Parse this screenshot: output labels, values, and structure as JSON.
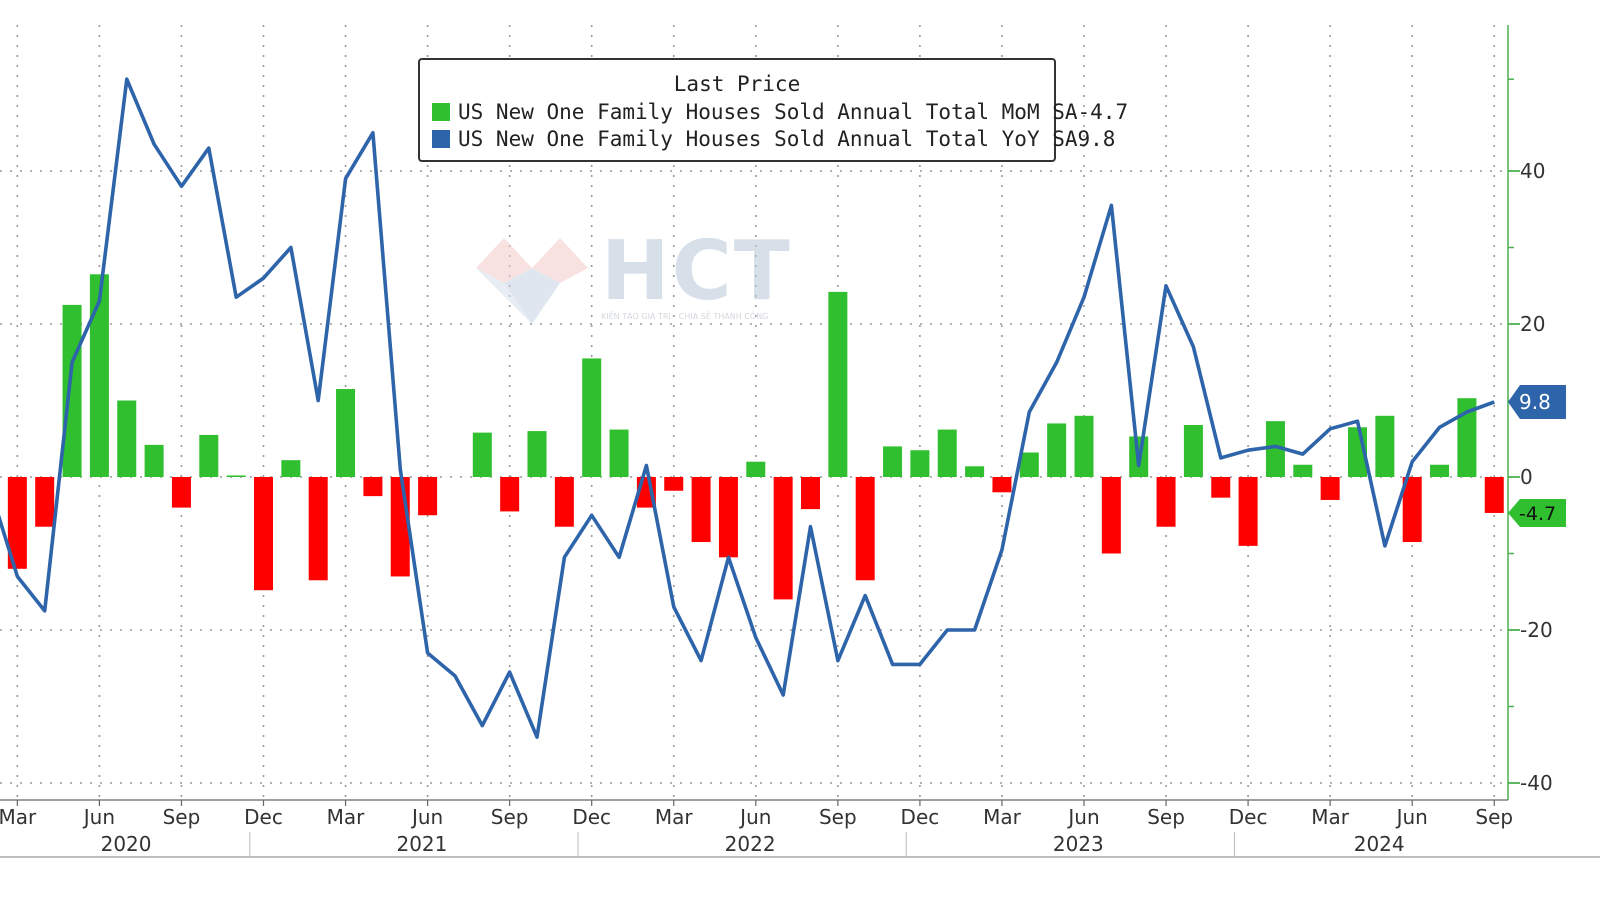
{
  "legend": {
    "title": "Last Price",
    "items": [
      {
        "name": "US New One Family Houses Sold Annual Total MoM SA",
        "value": "-4.7",
        "color": "#2fbf2f"
      },
      {
        "name": "US New One Family Houses Sold Annual Total YoY SA",
        "value": "9.8",
        "color": "#2e64aa"
      }
    ]
  },
  "watermark": {
    "text": "HCT",
    "tagline": "KIẾN TẠO GIÁ TRỊ - CHIA SẺ THÀNH CÔNG"
  },
  "chart_data": {
    "type": "bar+line",
    "months": [
      "2020-02",
      "2020-03",
      "2020-04",
      "2020-05",
      "2020-06",
      "2020-07",
      "2020-08",
      "2020-09",
      "2020-10",
      "2020-11",
      "2020-12",
      "2021-01",
      "2021-02",
      "2021-03",
      "2021-04",
      "2021-05",
      "2021-06",
      "2021-07",
      "2021-08",
      "2021-09",
      "2021-10",
      "2021-11",
      "2021-12",
      "2022-01",
      "2022-02",
      "2022-03",
      "2022-04",
      "2022-05",
      "2022-06",
      "2022-07",
      "2022-08",
      "2022-09",
      "2022-10",
      "2022-11",
      "2022-12",
      "2023-01",
      "2023-02",
      "2023-03",
      "2023-04",
      "2023-05",
      "2023-06",
      "2023-07",
      "2023-08",
      "2023-09",
      "2023-10",
      "2023-11",
      "2023-12",
      "2024-01",
      "2024-02",
      "2024-03",
      "2024-04",
      "2024-05",
      "2024-06",
      "2024-07",
      "2024-08",
      "2024-09"
    ],
    "series": [
      {
        "name": "US New One Family Houses Sold Annual Total MoM SA",
        "type": "bar",
        "color_pos": "#2fbf2f",
        "color_neg": "#ff0000",
        "values": [
          null,
          -12,
          -6.5,
          22.5,
          26.5,
          10,
          4.2,
          -4,
          5.5,
          0.2,
          -14.8,
          2.2,
          -13.5,
          11.5,
          -2.5,
          -13,
          -5,
          null,
          5.8,
          -4.5,
          6,
          -6.5,
          15.5,
          6.2,
          -4,
          -1.8,
          -8.5,
          -10.5,
          2,
          -16,
          -4.2,
          24.2,
          -13.5,
          4,
          3.5,
          6.2,
          1.4,
          -2,
          3.2,
          7,
          8,
          -10,
          5.3,
          -6.5,
          6.8,
          -2.7,
          -9,
          7.3,
          1.6,
          -3,
          6.5,
          8,
          -8.5,
          1.6,
          10.3,
          -4.7
        ]
      },
      {
        "name": "US New One Family Houses Sold Annual Total YoY SA",
        "type": "line",
        "color": "#2e64aa",
        "values": [
          -1.5,
          -13,
          -17.5,
          15,
          23,
          52,
          43.5,
          38,
          43,
          23.5,
          26,
          30,
          10,
          39,
          45,
          1,
          -23,
          -26,
          -32.5,
          -25.5,
          -34,
          -10.5,
          -5,
          -10.5,
          1.5,
          -17,
          -24,
          -10.5,
          -21,
          -28.5,
          -6.5,
          -24,
          -15.5,
          -24.5,
          -24.5,
          -20,
          -20,
          -9.5,
          8.5,
          15,
          23.5,
          35.5,
          1.5,
          25,
          17,
          2.5,
          3.5,
          4,
          3,
          6.3,
          7.3,
          -9,
          2,
          6.5,
          8.5,
          9.8
        ]
      }
    ],
    "x_tick_labels": [
      "Mar",
      "Jun",
      "Sep",
      "Dec",
      "Mar",
      "Jun",
      "Sep",
      "Dec",
      "Mar",
      "Jun",
      "Sep",
      "Dec",
      "Mar",
      "Jun",
      "Sep",
      "Dec",
      "Mar",
      "Jun",
      "Sep"
    ],
    "x_tick_months": [
      "2020-03",
      "2020-06",
      "2020-09",
      "2020-12",
      "2021-03",
      "2021-06",
      "2021-09",
      "2021-12",
      "2022-03",
      "2022-06",
      "2022-09",
      "2022-12",
      "2023-03",
      "2023-06",
      "2023-09",
      "2023-12",
      "2024-03",
      "2024-06",
      "2024-09"
    ],
    "year_labels": [
      "2020",
      "2021",
      "2022",
      "2023",
      "2024"
    ],
    "y_ticks": [
      "40",
      "20",
      "0",
      "-20",
      "-40"
    ],
    "ylim": [
      -40,
      52
    ],
    "last_value_labels": {
      "line": "9.8",
      "bar": "-4.7"
    },
    "grid": true,
    "legend_position": "top-center"
  }
}
